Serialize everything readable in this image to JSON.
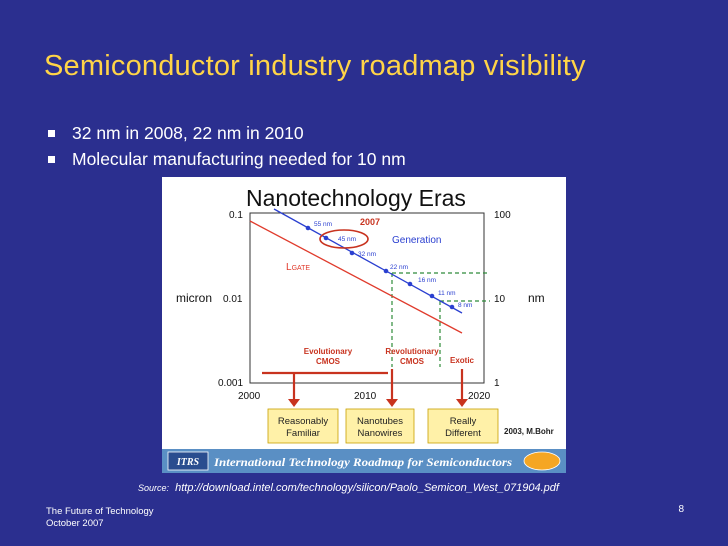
{
  "slide": {
    "title": "Semiconductor industry roadmap visibility",
    "bullets": [
      "32 nm in 2008, 22 nm in 2010",
      "Molecular manufacturing needed for 10 nm"
    ]
  },
  "figure": {
    "title": "Nanotechnology Eras",
    "y_left_label": "micron",
    "y_right_label": "nm",
    "y_left_ticks": [
      "0.1",
      "0.01",
      "0.001"
    ],
    "y_right_ticks": [
      "100",
      "10",
      "1"
    ],
    "x_ticks": [
      "2000",
      "2010",
      "2020"
    ],
    "year_marker": "2007",
    "generation_label": "Generation",
    "lgate_label": "L",
    "lgate_sub": "GATE",
    "node_labels": [
      "55 nm",
      "45 nm",
      "32 nm",
      "22 nm",
      "16 nm",
      "11 nm",
      "8 nm"
    ],
    "eras": [
      {
        "label_line1": "Evolutionary",
        "label_line2": "CMOS"
      },
      {
        "label_line1": "Revolutionary",
        "label_line2": "CMOS"
      },
      {
        "label_line1": "Exotic",
        "label_line2": ""
      }
    ],
    "boxes": [
      {
        "line1": "Reasonably",
        "line2": "Familiar"
      },
      {
        "line1": "Nanotubes",
        "line2": "Nanowires"
      },
      {
        "line1": "Really",
        "line2": "Different"
      }
    ],
    "credit": "2003, M.Bohr",
    "itrs_logo": "ITRS",
    "banner_text": "International Technology Roadmap for Semiconductors"
  },
  "source": {
    "label": "Source:",
    "url": "http://download.intel.com/technology/silicon/Paolo_Semicon_West_071904.pdf"
  },
  "footer": {
    "line1": "The Future of Technology",
    "line2": "October 2007",
    "page": "8"
  },
  "colors": {
    "background": "#2b2f8f",
    "title": "#ffd447",
    "generation_line": "#2a3fd0",
    "lgate_line": "#e03b2c",
    "era_text": "#c8331f",
    "guide_lines": "#2e8b3a",
    "box_fill": "#fff1a8"
  }
}
